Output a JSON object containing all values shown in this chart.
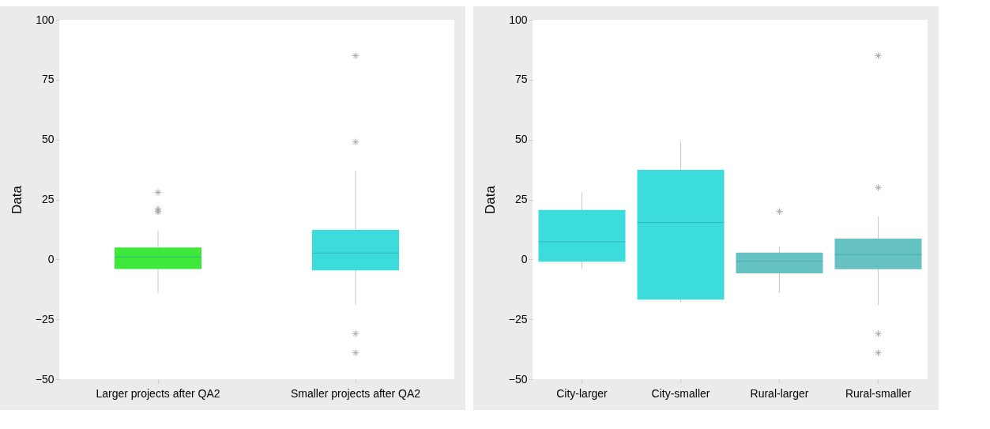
{
  "chart_data": [
    {
      "type": "box",
      "ylabel": "Data",
      "categories": [
        "Larger projects after QA2",
        "Smaller projects after QA2"
      ],
      "colors": [
        "#3de83a",
        "#3cdcdc"
      ],
      "ylim": [
        -50,
        100
      ],
      "yticks": [
        -50,
        -25,
        0,
        25,
        50,
        75,
        100
      ],
      "marker": "cross",
      "grid": false,
      "boxes": [
        {
          "low": -14,
          "q1": -4,
          "median": 1,
          "q3": 5,
          "high": 12,
          "outliers": [
            28,
            21,
            20,
            20
          ]
        },
        {
          "low": -19,
          "q1": -4.6,
          "median": 2.7,
          "q3": 12.3,
          "high": 37,
          "outliers": [
            85,
            49,
            -31,
            -39
          ]
        }
      ]
    },
    {
      "type": "box",
      "ylabel": "Data",
      "categories": [
        "City-larger",
        "City-smaller",
        "Rural-larger",
        "Rural-smaller"
      ],
      "colors": [
        "#3cdcdc",
        "#3cdcdc",
        "#66c2c2",
        "#66c2c2"
      ],
      "ylim": [
        -50,
        100
      ],
      "yticks": [
        -50,
        -25,
        0,
        25,
        50,
        75,
        100
      ],
      "marker": "cross",
      "grid": false,
      "boxes": [
        {
          "low": -4,
          "q1": -1,
          "median": 7.4,
          "q3": 20.6,
          "high": 28
        },
        {
          "low": -18,
          "q1": -16.8,
          "median": 15.4,
          "q3": 37.4,
          "high": 49
        },
        {
          "low": -14,
          "q1": -5.8,
          "median": -0.8,
          "q3": 2.8,
          "high": 5.4,
          "outliers": [
            20
          ]
        },
        {
          "low": -19,
          "q1": -4.1,
          "median": 2,
          "q3": 8.7,
          "high": 18,
          "outliers": [
            85,
            30,
            -31,
            -39
          ]
        }
      ]
    }
  ]
}
